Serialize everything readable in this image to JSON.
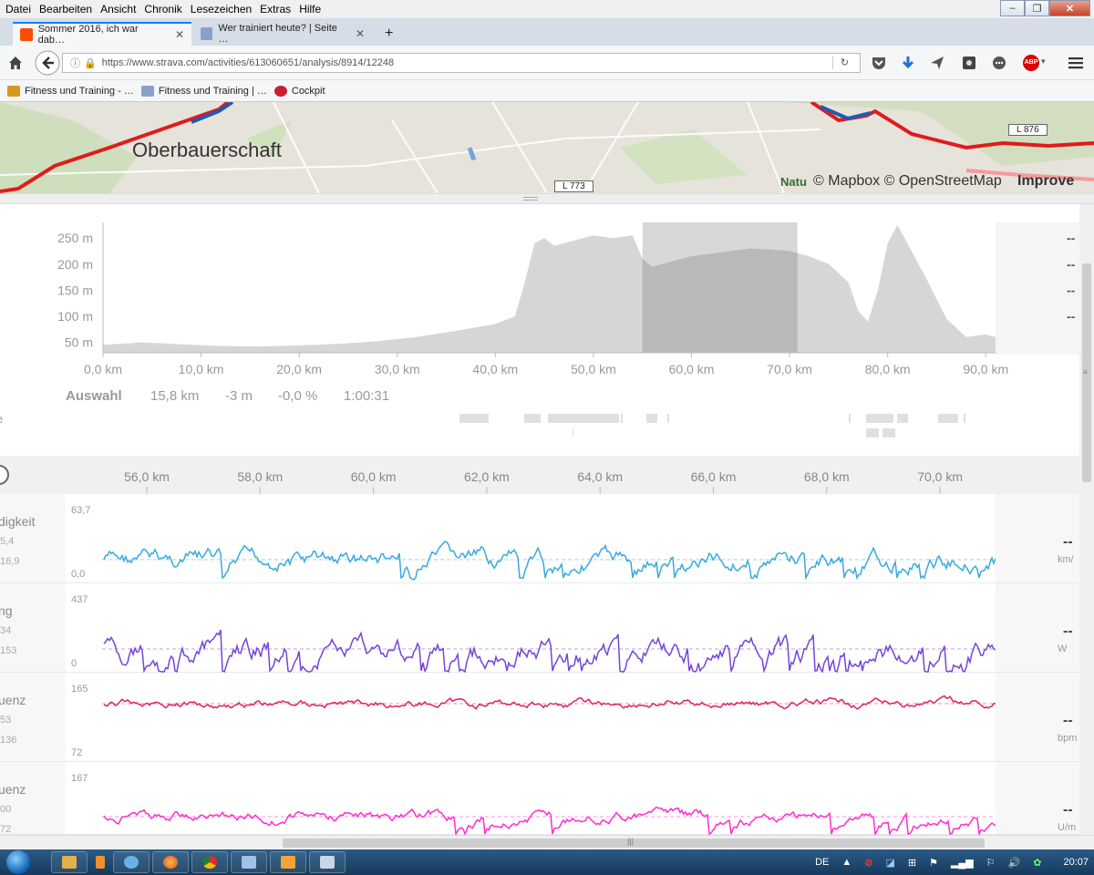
{
  "menu": [
    "Datei",
    "Bearbeiten",
    "Ansicht",
    "Chronik",
    "Lesezeichen",
    "Extras",
    "Hilfe"
  ],
  "tabs": [
    {
      "label": "Sommer 2016, ich war dab…",
      "active": true
    },
    {
      "label": "Wer trainiert heute? | Seite …",
      "active": false
    }
  ],
  "url": "https://www.strava.com/activities/613060651/analysis/8914/12248",
  "bookmarks": [
    "Fitness und Training - …",
    "Fitness und Training | …",
    "Cockpit"
  ],
  "map": {
    "town": "Oberbauerschaft",
    "road1": "L 773",
    "road2": "L 876",
    "attribution": "© Mapbox © OpenStreetMap",
    "improve": "Improve",
    "natur": "Natu"
  },
  "elevation": {
    "y_ticks": [
      "250 m",
      "200 m",
      "150 m",
      "100 m",
      "50 m"
    ],
    "x_ticks": [
      "0,0 km",
      "10,0 km",
      "20,0 km",
      "30,0 km",
      "40,0 km",
      "50,0 km",
      "60,0 km",
      "70,0 km",
      "80,0 km",
      "90,0 km"
    ],
    "right_dashes": [
      "--",
      "--",
      "--",
      "--"
    ],
    "selection": {
      "label": "Auswahl",
      "distance": "15,8 km",
      "elevation": "-3 m",
      "grade": "-0,0 %",
      "time": "1:00:31"
    },
    "left_cut": "e"
  },
  "detail_axis": [
    "56,0 km",
    "58,0 km",
    "60,0 km",
    "62,0 km",
    "64,0 km",
    "66,0 km",
    "68,0 km",
    "70,0 km"
  ],
  "streams": [
    {
      "label": "digkeit",
      "sub1": "5,4",
      "sub2": "16,9",
      "max": "63,7",
      "min": "0,0",
      "dash": "--",
      "unit": "km/",
      "color": "#3aa9dd"
    },
    {
      "label": "ng",
      "sub1": "34",
      "sub2": "153",
      "max": "437",
      "min": "0",
      "dash": "--",
      "unit": "W",
      "color": "#7645d6"
    },
    {
      "label": "uenz",
      "sub1": "53",
      "sub2": "136",
      "max": "165",
      "min": "72",
      "dash": "--",
      "unit": "bpm",
      "color": "#e0245e"
    },
    {
      "label": "uenz",
      "sub1": "00",
      "sub2": "72",
      "max": "167",
      "min": "",
      "dash": "--",
      "unit": "U/m",
      "color": "#ff2ed1"
    }
  ],
  "tray": {
    "lang": "DE",
    "time": "20:07"
  },
  "chart_data": {
    "type": "area",
    "title": "",
    "xlabel": "",
    "ylabel": "",
    "x_unit": "km",
    "y_unit": "m",
    "ylim": [
      30,
      280
    ],
    "xlim": [
      0,
      91
    ],
    "x": [
      0,
      4,
      8,
      12,
      16,
      20,
      24,
      28,
      32,
      36,
      40,
      42,
      43,
      44,
      45,
      46,
      48,
      50,
      52,
      54,
      55,
      56,
      58,
      60,
      62,
      64,
      66,
      68,
      70,
      71,
      72,
      74,
      76,
      77,
      78,
      79,
      80,
      81,
      82,
      84,
      86,
      88,
      90,
      91
    ],
    "y": [
      45,
      50,
      46,
      43,
      42,
      44,
      47,
      52,
      60,
      72,
      85,
      100,
      165,
      240,
      250,
      235,
      245,
      255,
      250,
      255,
      210,
      195,
      205,
      215,
      220,
      225,
      230,
      228,
      225,
      220,
      215,
      200,
      165,
      110,
      90,
      150,
      240,
      275,
      240,
      170,
      95,
      60,
      65,
      60
    ],
    "selection_km": [
      55.0,
      70.8
    ]
  }
}
